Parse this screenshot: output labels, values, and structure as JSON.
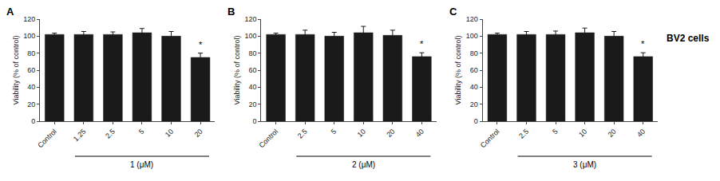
{
  "chart_data": [
    {
      "type": "bar",
      "title": "A",
      "categories": [
        "Control",
        "1.25",
        "2.5",
        "5",
        "10",
        "20"
      ],
      "values": [
        102,
        102,
        102,
        104,
        100,
        75
      ],
      "errors": [
        1.5,
        3.5,
        3.0,
        5.0,
        5.5,
        5.0
      ],
      "color": "#1a1a1a",
      "ylabel": "Viability (% of control)",
      "ylim": [
        0,
        120
      ],
      "yticks": [
        0,
        20,
        40,
        60,
        80,
        100,
        120
      ],
      "grid": false,
      "annotations": [
        {
          "text": "*",
          "category": "20"
        },
        {
          "text": "1 (μM)",
          "from": "1.25",
          "to": "20"
        }
      ]
    },
    {
      "type": "bar",
      "title": "B",
      "categories": [
        "Control",
        "2.5",
        "5",
        "10",
        "20",
        "40"
      ],
      "values": [
        102,
        102,
        100,
        104,
        101,
        76
      ],
      "errors": [
        1.5,
        5.0,
        4.5,
        7.5,
        6.0,
        4.5
      ],
      "color": "#1a1a1a",
      "ylabel": "Viability (% of control)",
      "ylim": [
        0,
        120
      ],
      "yticks": [
        0,
        20,
        40,
        60,
        80,
        100,
        120
      ],
      "grid": false,
      "annotations": [
        {
          "text": "*",
          "category": "40"
        },
        {
          "text": "2 (μM)",
          "from": "2.5",
          "to": "40"
        }
      ]
    },
    {
      "type": "bar",
      "title": "C",
      "categories": [
        "Control",
        "2.5",
        "5",
        "10",
        "20",
        "40"
      ],
      "values": [
        102,
        102,
        102,
        104,
        100,
        76
      ],
      "errors": [
        1.5,
        3.5,
        4.0,
        5.5,
        5.5,
        4.5
      ],
      "color": "#1a1a1a",
      "ylabel": "Viability (% of control)",
      "ylim": [
        0,
        120
      ],
      "yticks": [
        0,
        20,
        40,
        60,
        80,
        100,
        120
      ],
      "grid": false,
      "annotations": [
        {
          "text": "*",
          "category": "40"
        },
        {
          "text": "3 (μM)",
          "from": "2.5",
          "to": "40"
        },
        {
          "text": "BV2 cells"
        }
      ]
    }
  ]
}
